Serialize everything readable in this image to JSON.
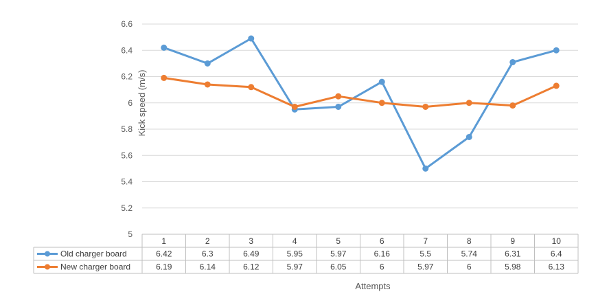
{
  "chart_data": {
    "type": "line",
    "categories": [
      "1",
      "2",
      "3",
      "4",
      "5",
      "6",
      "7",
      "8",
      "9",
      "10"
    ],
    "series": [
      {
        "name": "Old charger board",
        "color": "#5b9bd5",
        "values": [
          6.42,
          6.3,
          6.49,
          5.95,
          5.97,
          6.16,
          5.5,
          5.74,
          6.31,
          6.4
        ],
        "labels": [
          "6.42",
          "6.3",
          "6.49",
          "5.95",
          "5.97",
          "6.16",
          "5.5",
          "5.74",
          "6.31",
          "6.4"
        ]
      },
      {
        "name": "New charger board",
        "color": "#ed7d31",
        "values": [
          6.19,
          6.14,
          6.12,
          5.97,
          6.05,
          6.0,
          5.97,
          6.0,
          5.98,
          6.13
        ],
        "labels": [
          "6.19",
          "6.14",
          "6.12",
          "5.97",
          "6.05",
          "6",
          "5.97",
          "6",
          "5.98",
          "6.13"
        ]
      }
    ],
    "ylim": [
      5,
      6.6
    ],
    "yticks": [
      "5",
      "5.2",
      "5.4",
      "5.6",
      "5.8",
      "6",
      "6.2",
      "6.4",
      "6.6"
    ],
    "xlabel": "Attempts",
    "ylabel": "Kick speed (m/s)",
    "grid": true,
    "legend": "data-table"
  }
}
